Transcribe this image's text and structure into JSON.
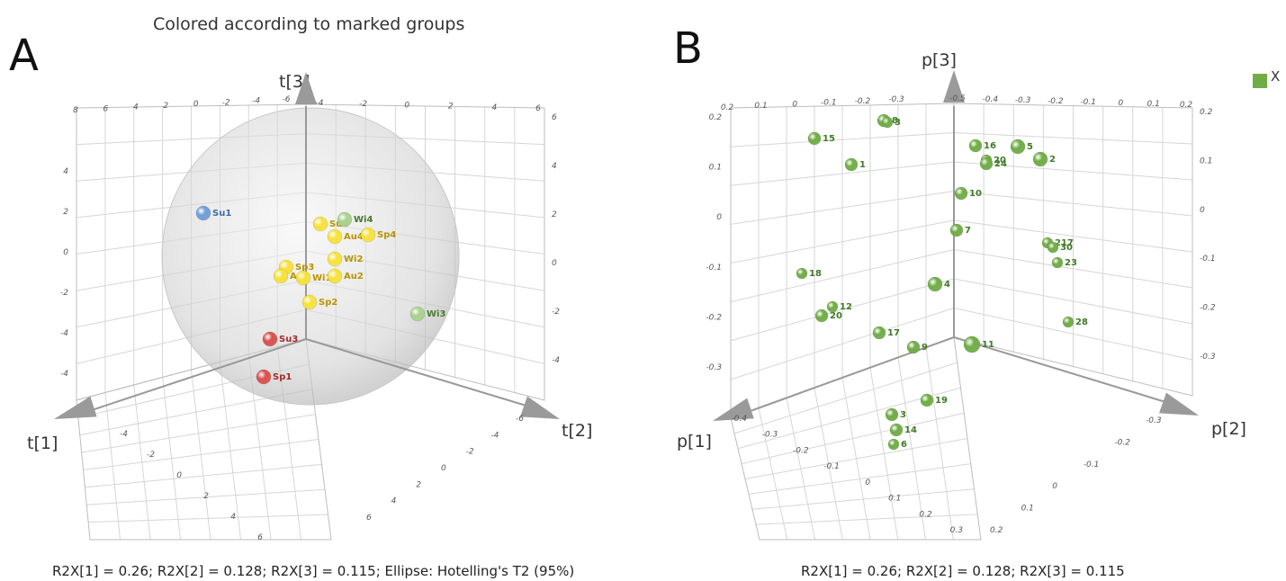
{
  "panels": [
    {
      "letter": "A"
    },
    {
      "letter": "B"
    }
  ],
  "chart_data": [
    {
      "type": "scatter",
      "dimensions": 3,
      "title": "Colored according to marked groups",
      "axes": {
        "x": "t[1]",
        "y": "t[2]",
        "z": "t[3]"
      },
      "caption": "R2X[1] = 0.26; R2X[2] = 0.128; R2X[3] = 0.115; Ellipse: Hotelling's T2 (95%)",
      "ellipse": "Hotelling's T2 (95%)",
      "ticks": {
        "t1": [
          "-4",
          "-2",
          "0",
          "2",
          "4",
          "6"
        ],
        "t2": [
          "-6",
          "-4",
          "-2",
          "0",
          "2",
          "4",
          "6"
        ],
        "t3": [
          "-4",
          "-2",
          "0",
          "2",
          "4"
        ],
        "back_top_left": [
          "8",
          "6",
          "4",
          "2",
          "0",
          "-2",
          "-4",
          "-6"
        ],
        "back_top_right": [
          "-4",
          "-2",
          "0",
          "2",
          "4",
          "6"
        ],
        "back_left_vertical": [
          "4",
          "2",
          "0",
          "-2",
          "-4",
          "-4"
        ],
        "back_right_vertical": [
          "6",
          "4",
          "2",
          "0",
          "-2",
          "-4"
        ]
      },
      "colors": {
        "summer": "#6f9fd8",
        "spring_red": "#d9534f",
        "yellow": "#f6e23c",
        "green": "#a9d18e"
      },
      "points": [
        {
          "label": "Su1",
          "color": "#6f9fd8",
          "text_color": "#3b6ea5"
        },
        {
          "label": "Su4",
          "color": "#f6e23c",
          "text_color": "#b89400"
        },
        {
          "label": "Wi4",
          "color": "#a9d18e",
          "text_color": "#4a7a2d"
        },
        {
          "label": "Au4",
          "color": "#f6e23c",
          "text_color": "#b89400"
        },
        {
          "label": "Sp4",
          "color": "#f6e23c",
          "text_color": "#b89400"
        },
        {
          "label": "Wi2",
          "color": "#f6e23c",
          "text_color": "#b89400"
        },
        {
          "label": "Sp3",
          "color": "#f6e23c",
          "text_color": "#b89400"
        },
        {
          "label": "Au3",
          "color": "#f6e23c",
          "text_color": "#b89400"
        },
        {
          "label": "Wi1",
          "color": "#f6e23c",
          "text_color": "#b89400"
        },
        {
          "label": "Au2",
          "color": "#f6e23c",
          "text_color": "#b89400"
        },
        {
          "label": "Sp2",
          "color": "#f6e23c",
          "text_color": "#b89400"
        },
        {
          "label": "Wi3",
          "color": "#a9d18e",
          "text_color": "#4a7a2d"
        },
        {
          "label": "Su3",
          "color": "#d9534f",
          "text_color": "#a52a2a"
        },
        {
          "label": "Sp1",
          "color": "#d9534f",
          "text_color": "#a52a2a"
        }
      ]
    },
    {
      "type": "scatter",
      "dimensions": 3,
      "axes": {
        "x": "p[1]",
        "y": "p[2]",
        "z": "p[3]"
      },
      "caption": "R2X[1] = 0.26; R2X[2] = 0.128; R2X[3] = 0.115",
      "legend": [
        {
          "name": "X",
          "color": "#70ad47"
        }
      ],
      "ticks": {
        "p1": [
          "-0.4",
          "-0.3",
          "-0.2",
          "-0.1",
          "0",
          "0.1",
          "0.2",
          "0.3"
        ],
        "p2": [
          "-0.3",
          "-0.2",
          "-0.1",
          "0",
          "0.1",
          "0.2"
        ],
        "back_top_left": [
          "0.2",
          "0.1",
          "0",
          "-0.1",
          "-0.2",
          "-0.3"
        ],
        "back_top_right": [
          "-0.5",
          "-0.4",
          "-0.3",
          "-0.2",
          "-0.1",
          "0",
          "0.1",
          "0.2"
        ],
        "back_left_vertical": [
          "0.2",
          "0.1",
          "0",
          "-0.1",
          "-0.2",
          "-0.3"
        ],
        "back_right_vertical": [
          "0.2",
          "0.1",
          "0",
          "-0.1",
          "-0.2",
          "-0.3"
        ]
      },
      "point_color": "#70ad47",
      "points": [
        {
          "label": "15"
        },
        {
          "label": "8"
        },
        {
          "label": "3"
        },
        {
          "label": "1"
        },
        {
          "label": "16"
        },
        {
          "label": "20"
        },
        {
          "label": "24"
        },
        {
          "label": "5"
        },
        {
          "label": "2"
        },
        {
          "label": "10"
        },
        {
          "label": "7"
        },
        {
          "label": "217"
        },
        {
          "label": "30"
        },
        {
          "label": "23"
        },
        {
          "label": "18"
        },
        {
          "label": "4"
        },
        {
          "label": "12"
        },
        {
          "label": "20"
        },
        {
          "label": "28"
        },
        {
          "label": "17"
        },
        {
          "label": "9"
        },
        {
          "label": "11"
        },
        {
          "label": "19"
        },
        {
          "label": "3"
        },
        {
          "label": "14"
        },
        {
          "label": "6"
        }
      ]
    }
  ]
}
